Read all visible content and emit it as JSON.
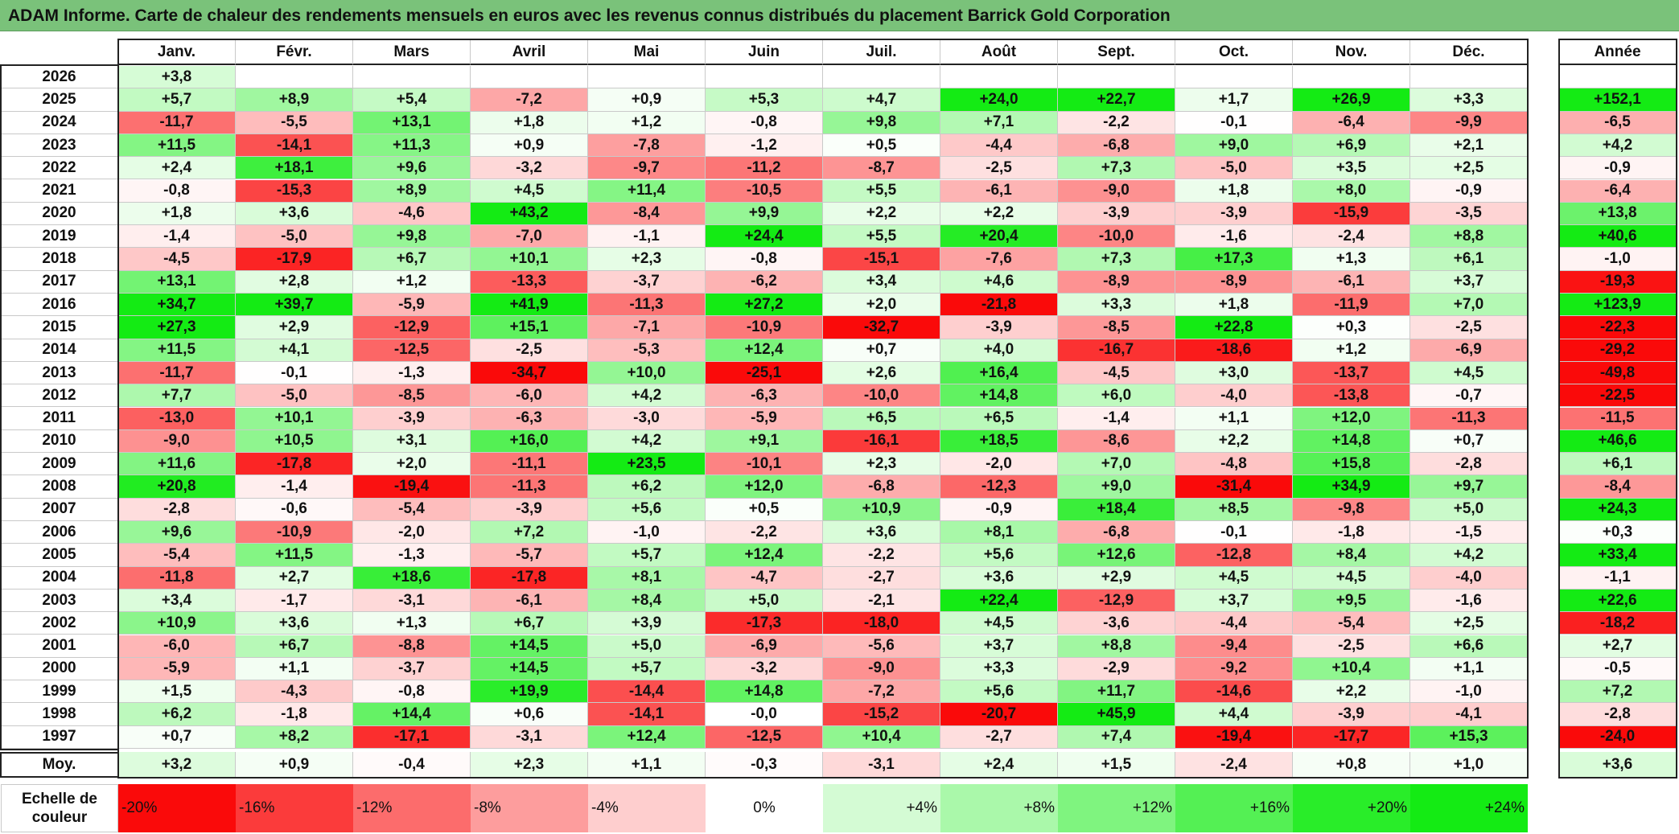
{
  "title": "ADAM Informe. Carte de chaleur des rendements mensuels en euros avec les revenus connus distribués du placement Barrick Gold Corporation",
  "chart_data": {
    "type": "heatmap",
    "title": "ADAM Informe. Carte de chaleur des rendements mensuels en euros avec les revenus connus distribués du placement Barrick Gold Corporation",
    "months": [
      "Janv.",
      "Févr.",
      "Mars",
      "Avril",
      "Mai",
      "Juin",
      "Juil.",
      "Août",
      "Sept.",
      "Oct.",
      "Nov.",
      "Déc."
    ],
    "year_header": "Année",
    "rows": [
      {
        "year": "2026",
        "months": [
          "+3,8",
          "",
          "",
          "",
          "",
          "",
          "",
          "",
          "",
          "",
          "",
          ""
        ],
        "annual": ""
      },
      {
        "year": "2025",
        "months": [
          "+5,7",
          "+8,9",
          "+5,4",
          "-7,2",
          "+0,9",
          "+5,3",
          "+4,7",
          "+24,0",
          "+22,7",
          "+1,7",
          "+26,9",
          "+3,3"
        ],
        "annual": "+152,1"
      },
      {
        "year": "2024",
        "months": [
          "-11,7",
          "-5,5",
          "+13,1",
          "+1,8",
          "+1,2",
          "-0,8",
          "+9,8",
          "+7,1",
          "-2,2",
          "-0,1",
          "-6,4",
          "-9,9"
        ],
        "annual": "-6,5"
      },
      {
        "year": "2023",
        "months": [
          "+11,5",
          "-14,1",
          "+11,3",
          "+0,9",
          "-7,8",
          "-1,2",
          "+0,5",
          "-4,4",
          "-6,8",
          "+9,0",
          "+6,9",
          "+2,1"
        ],
        "annual": "+4,2"
      },
      {
        "year": "2022",
        "months": [
          "+2,4",
          "+18,1",
          "+9,6",
          "-3,2",
          "-9,7",
          "-11,2",
          "-8,7",
          "-2,5",
          "+7,3",
          "-5,0",
          "+3,5",
          "+2,5"
        ],
        "annual": "-0,9"
      },
      {
        "year": "2021",
        "months": [
          "-0,8",
          "-15,3",
          "+8,9",
          "+4,5",
          "+11,4",
          "-10,5",
          "+5,5",
          "-6,1",
          "-9,0",
          "+1,8",
          "+8,0",
          "-0,9"
        ],
        "annual": "-6,4"
      },
      {
        "year": "2020",
        "months": [
          "+1,8",
          "+3,6",
          "-4,6",
          "+43,2",
          "-8,4",
          "+9,9",
          "+2,2",
          "+2,2",
          "-3,9",
          "-3,9",
          "-15,9",
          "-3,5"
        ],
        "annual": "+13,8"
      },
      {
        "year": "2019",
        "months": [
          "-1,4",
          "-5,0",
          "+9,8",
          "-7,0",
          "-1,1",
          "+24,4",
          "+5,5",
          "+20,4",
          "-10,0",
          "-1,6",
          "-2,4",
          "+8,8"
        ],
        "annual": "+40,6"
      },
      {
        "year": "2018",
        "months": [
          "-4,5",
          "-17,9",
          "+6,7",
          "+10,1",
          "+2,3",
          "-0,8",
          "-15,1",
          "-7,6",
          "+7,3",
          "+17,3",
          "+1,3",
          "+6,1"
        ],
        "annual": "-1,0"
      },
      {
        "year": "2017",
        "months": [
          "+13,1",
          "+2,8",
          "+1,2",
          "-13,3",
          "-3,7",
          "-6,2",
          "+3,4",
          "+4,6",
          "-8,9",
          "-8,9",
          "-6,1",
          "+3,7"
        ],
        "annual": "-19,3"
      },
      {
        "year": "2016",
        "months": [
          "+34,7",
          "+39,7",
          "-5,9",
          "+41,9",
          "-11,3",
          "+27,2",
          "+2,0",
          "-21,8",
          "+3,3",
          "+1,8",
          "-11,9",
          "+7,0"
        ],
        "annual": "+123,9"
      },
      {
        "year": "2015",
        "months": [
          "+27,3",
          "+2,9",
          "-12,9",
          "+15,1",
          "-7,1",
          "-10,9",
          "-32,7",
          "-3,9",
          "-8,5",
          "+22,8",
          "+0,3",
          "-2,5"
        ],
        "annual": "-22,3"
      },
      {
        "year": "2014",
        "months": [
          "+11,5",
          "+4,1",
          "-12,5",
          "-2,5",
          "-5,3",
          "+12,4",
          "+0,7",
          "+4,0",
          "-16,7",
          "-18,6",
          "+1,2",
          "-6,9"
        ],
        "annual": "-29,2"
      },
      {
        "year": "2013",
        "months": [
          "-11,7",
          "-0,1",
          "-1,3",
          "-34,7",
          "+10,0",
          "-25,1",
          "+2,6",
          "+16,4",
          "-4,5",
          "+3,0",
          "-13,7",
          "+4,5"
        ],
        "annual": "-49,8"
      },
      {
        "year": "2012",
        "months": [
          "+7,7",
          "-5,0",
          "-8,5",
          "-6,0",
          "+4,2",
          "-6,3",
          "-10,0",
          "+14,8",
          "+6,0",
          "-4,0",
          "-13,8",
          "-0,7"
        ],
        "annual": "-22,5"
      },
      {
        "year": "2011",
        "months": [
          "-13,0",
          "+10,1",
          "-3,9",
          "-6,3",
          "-3,0",
          "-5,9",
          "+6,5",
          "+6,5",
          "-1,4",
          "+1,1",
          "+12,0",
          "-11,3"
        ],
        "annual": "-11,5"
      },
      {
        "year": "2010",
        "months": [
          "-9,0",
          "+10,5",
          "+3,1",
          "+16,0",
          "+4,2",
          "+9,1",
          "-16,1",
          "+18,5",
          "-8,6",
          "+2,2",
          "+14,8",
          "+0,7"
        ],
        "annual": "+46,6"
      },
      {
        "year": "2009",
        "months": [
          "+11,6",
          "-17,8",
          "+2,0",
          "-11,1",
          "+23,5",
          "-10,1",
          "+2,3",
          "-2,0",
          "+7,0",
          "-4,8",
          "+15,8",
          "-2,8"
        ],
        "annual": "+6,1"
      },
      {
        "year": "2008",
        "months": [
          "+20,8",
          "-1,4",
          "-19,4",
          "-11,3",
          "+6,2",
          "+12,0",
          "-6,8",
          "-12,3",
          "+9,0",
          "-31,4",
          "+34,9",
          "+9,7"
        ],
        "annual": "-8,4"
      },
      {
        "year": "2007",
        "months": [
          "-2,8",
          "-0,6",
          "-5,4",
          "-3,9",
          "+5,6",
          "+0,5",
          "+10,9",
          "-0,9",
          "+18,4",
          "+8,5",
          "-9,8",
          "+5,0"
        ],
        "annual": "+24,3"
      },
      {
        "year": "2006",
        "months": [
          "+9,6",
          "-10,9",
          "-2,0",
          "+7,2",
          "-1,0",
          "-2,2",
          "+3,6",
          "+8,1",
          "-6,8",
          "-0,1",
          "-1,8",
          "-1,5"
        ],
        "annual": "+0,3"
      },
      {
        "year": "2005",
        "months": [
          "-5,4",
          "+11,5",
          "-1,3",
          "-5,7",
          "+5,7",
          "+12,4",
          "-2,2",
          "+5,6",
          "+12,6",
          "-12,8",
          "+8,4",
          "+4,2"
        ],
        "annual": "+33,4"
      },
      {
        "year": "2004",
        "months": [
          "-11,8",
          "+2,7",
          "+18,6",
          "-17,8",
          "+8,1",
          "-4,7",
          "-2,7",
          "+3,6",
          "+2,9",
          "+4,5",
          "+4,5",
          "-4,0"
        ],
        "annual": "-1,1"
      },
      {
        "year": "2003",
        "months": [
          "+3,4",
          "-1,7",
          "-3,1",
          "-6,1",
          "+8,4",
          "+5,0",
          "-2,1",
          "+22,4",
          "-12,9",
          "+3,7",
          "+9,5",
          "-1,6"
        ],
        "annual": "+22,6"
      },
      {
        "year": "2002",
        "months": [
          "+10,9",
          "+3,6",
          "+1,3",
          "+6,7",
          "+3,9",
          "-17,3",
          "-18,0",
          "+4,5",
          "-3,6",
          "-4,4",
          "-5,4",
          "+2,5"
        ],
        "annual": "-18,2"
      },
      {
        "year": "2001",
        "months": [
          "-6,0",
          "+6,7",
          "-8,8",
          "+14,5",
          "+5,0",
          "-6,9",
          "-5,6",
          "+3,7",
          "+8,8",
          "-9,4",
          "-2,5",
          "+6,6"
        ],
        "annual": "+2,7"
      },
      {
        "year": "2000",
        "months": [
          "-5,9",
          "+1,1",
          "-3,7",
          "+14,5",
          "+5,7",
          "-3,2",
          "-9,0",
          "+3,3",
          "-2,9",
          "-9,2",
          "+10,4",
          "+1,1"
        ],
        "annual": "-0,5"
      },
      {
        "year": "1999",
        "months": [
          "+1,5",
          "-4,3",
          "-0,8",
          "+19,9",
          "-14,4",
          "+14,8",
          "-7,2",
          "+5,6",
          "+11,7",
          "-14,6",
          "+2,2",
          "-1,0"
        ],
        "annual": "+7,2"
      },
      {
        "year": "1998",
        "months": [
          "+6,2",
          "-1,8",
          "+14,4",
          "+0,6",
          "-14,1",
          "-0,0",
          "-15,2",
          "-20,7",
          "+45,9",
          "+4,4",
          "-3,9",
          "-4,1"
        ],
        "annual": "-2,8"
      },
      {
        "year": "1997",
        "months": [
          "+0,7",
          "+8,2",
          "-17,1",
          "-3,1",
          "+12,4",
          "-12,5",
          "+10,4",
          "-2,7",
          "+7,4",
          "-19,4",
          "-17,7",
          "+15,3"
        ],
        "annual": "-24,0"
      }
    ],
    "average": {
      "label": "Moy.",
      "months": [
        "+3,2",
        "+0,9",
        "-0,4",
        "+2,3",
        "+1,1",
        "-0,3",
        "-3,1",
        "+2,4",
        "+1,5",
        "-2,4",
        "+0,8",
        "+1,0"
      ],
      "annual": "+3,6"
    },
    "scale": {
      "label": "Echelle de couleur",
      "steps": [
        "-20%",
        "-16%",
        "-12%",
        "-8%",
        "-4%",
        "0%",
        "+4%",
        "+8%",
        "+12%",
        "+16%",
        "+20%",
        "+24%"
      ]
    },
    "colors": {
      "negative_max": "#ff0000",
      "neutral": "#ffffff",
      "positive_max": "#00ff00"
    }
  }
}
